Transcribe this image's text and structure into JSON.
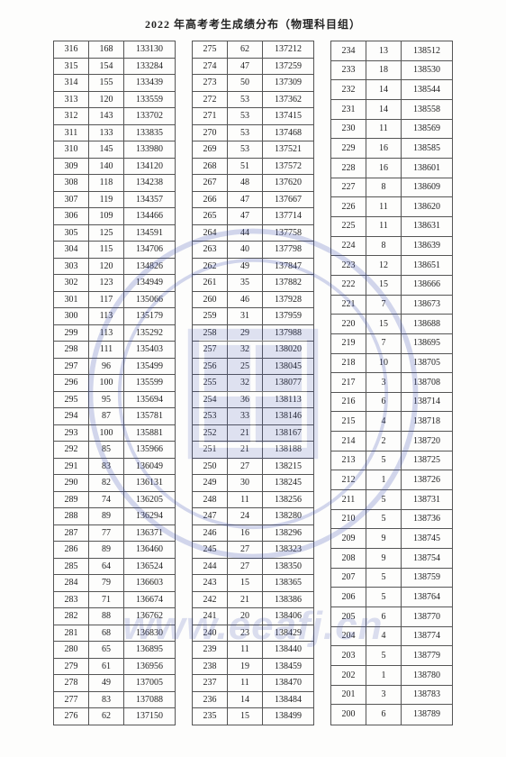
{
  "title": "2022 年高考考生成绩分布（物理科目组）",
  "watermark_url": "www.eeafj.cn",
  "seal_color": "#3a4db0",
  "table1": {
    "rows": [
      [
        316,
        168,
        133130
      ],
      [
        315,
        154,
        133284
      ],
      [
        314,
        155,
        133439
      ],
      [
        313,
        120,
        133559
      ],
      [
        312,
        143,
        133702
      ],
      [
        311,
        133,
        133835
      ],
      [
        310,
        145,
        133980
      ],
      [
        309,
        140,
        134120
      ],
      [
        308,
        118,
        134238
      ],
      [
        307,
        119,
        134357
      ],
      [
        306,
        109,
        134466
      ],
      [
        305,
        125,
        134591
      ],
      [
        304,
        115,
        134706
      ],
      [
        303,
        120,
        134826
      ],
      [
        302,
        123,
        134949
      ],
      [
        301,
        117,
        135066
      ],
      [
        300,
        113,
        135179
      ],
      [
        299,
        113,
        135292
      ],
      [
        298,
        111,
        135403
      ],
      [
        297,
        96,
        135499
      ],
      [
        296,
        100,
        135599
      ],
      [
        295,
        95,
        135694
      ],
      [
        294,
        87,
        135781
      ],
      [
        293,
        100,
        135881
      ],
      [
        292,
        85,
        135966
      ],
      [
        291,
        83,
        136049
      ],
      [
        290,
        82,
        136131
      ],
      [
        289,
        74,
        136205
      ],
      [
        288,
        89,
        136294
      ],
      [
        287,
        77,
        136371
      ],
      [
        286,
        89,
        136460
      ],
      [
        285,
        64,
        136524
      ],
      [
        284,
        79,
        136603
      ],
      [
        283,
        71,
        136674
      ],
      [
        282,
        88,
        136762
      ],
      [
        281,
        68,
        136830
      ],
      [
        280,
        65,
        136895
      ],
      [
        279,
        61,
        136956
      ],
      [
        278,
        49,
        137005
      ],
      [
        277,
        83,
        137088
      ],
      [
        276,
        62,
        137150
      ]
    ]
  },
  "table2": {
    "rows": [
      [
        275,
        62,
        137212
      ],
      [
        274,
        47,
        137259
      ],
      [
        273,
        50,
        137309
      ],
      [
        272,
        53,
        137362
      ],
      [
        271,
        53,
        137415
      ],
      [
        270,
        53,
        137468
      ],
      [
        269,
        53,
        137521
      ],
      [
        268,
        51,
        137572
      ],
      [
        267,
        48,
        137620
      ],
      [
        266,
        47,
        137667
      ],
      [
        265,
        47,
        137714
      ],
      [
        264,
        44,
        137758
      ],
      [
        263,
        40,
        137798
      ],
      [
        262,
        49,
        137847
      ],
      [
        261,
        35,
        137882
      ],
      [
        260,
        46,
        137928
      ],
      [
        259,
        31,
        137959
      ],
      [
        258,
        29,
        137988
      ],
      [
        257,
        32,
        138020
      ],
      [
        256,
        25,
        138045
      ],
      [
        255,
        32,
        138077
      ],
      [
        254,
        36,
        138113
      ],
      [
        253,
        33,
        138146
      ],
      [
        252,
        21,
        138167
      ],
      [
        251,
        21,
        138188
      ],
      [
        250,
        27,
        138215
      ],
      [
        249,
        30,
        138245
      ],
      [
        248,
        11,
        138256
      ],
      [
        247,
        24,
        138280
      ],
      [
        246,
        16,
        138296
      ],
      [
        245,
        27,
        138323
      ],
      [
        244,
        27,
        138350
      ],
      [
        243,
        15,
        138365
      ],
      [
        242,
        21,
        138386
      ],
      [
        241,
        20,
        138406
      ],
      [
        240,
        23,
        138429
      ],
      [
        239,
        11,
        138440
      ],
      [
        238,
        19,
        138459
      ],
      [
        237,
        11,
        138470
      ],
      [
        236,
        14,
        138484
      ],
      [
        235,
        15,
        138499
      ]
    ]
  },
  "table3": {
    "rows": [
      [
        234,
        13,
        138512
      ],
      [
        233,
        18,
        138530
      ],
      [
        232,
        14,
        138544
      ],
      [
        231,
        14,
        138558
      ],
      [
        230,
        11,
        138569
      ],
      [
        229,
        16,
        138585
      ],
      [
        228,
        16,
        138601
      ],
      [
        227,
        8,
        138609
      ],
      [
        226,
        11,
        138620
      ],
      [
        225,
        11,
        138631
      ],
      [
        224,
        8,
        138639
      ],
      [
        223,
        12,
        138651
      ],
      [
        222,
        15,
        138666
      ],
      [
        221,
        7,
        138673
      ],
      [
        220,
        15,
        138688
      ],
      [
        219,
        7,
        138695
      ],
      [
        218,
        10,
        138705
      ],
      [
        217,
        3,
        138708
      ],
      [
        216,
        6,
        138714
      ],
      [
        215,
        4,
        138718
      ],
      [
        214,
        2,
        138720
      ],
      [
        213,
        5,
        138725
      ],
      [
        212,
        1,
        138726
      ],
      [
        211,
        5,
        138731
      ],
      [
        210,
        5,
        138736
      ],
      [
        209,
        9,
        138745
      ],
      [
        208,
        9,
        138754
      ],
      [
        207,
        5,
        138759
      ],
      [
        206,
        5,
        138764
      ],
      [
        205,
        6,
        138770
      ],
      [
        204,
        4,
        138774
      ],
      [
        203,
        5,
        138779
      ],
      [
        202,
        1,
        138780
      ],
      [
        201,
        3,
        138783
      ],
      [
        200,
        6,
        138789
      ]
    ]
  }
}
